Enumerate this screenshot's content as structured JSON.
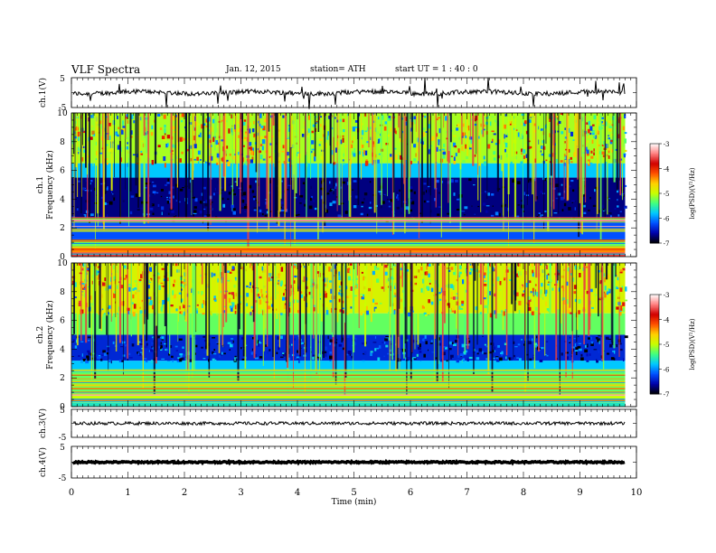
{
  "header": {
    "title": "VLF  Spectra",
    "date": "Jan. 12, 2015",
    "station": "station= ATH",
    "start": "start  UT  =   1 : 40 : 0"
  },
  "chart_data": [
    {
      "type": "line",
      "panel": "ch1-waveform",
      "ylabel": "ch.1(V)",
      "ylim": [
        -5,
        5
      ],
      "ytick_labels": [
        "5",
        "-5"
      ],
      "baseline": 0,
      "series_color": "#000000"
    },
    {
      "type": "heatmap",
      "panel": "ch1-spectrogram",
      "ylabel": "ch.1\nFrequency  (kHz)",
      "ylabel_line1": "ch.1",
      "ylabel_line2": "Frequency  (kHz)",
      "ylim": [
        0,
        10
      ],
      "ytick_labels": [
        "10",
        "8",
        "6",
        "4",
        "2",
        "0"
      ],
      "x_end_min": 9.8,
      "bands_khz": [
        {
          "from": 0.0,
          "to": 0.3,
          "level": -3.6
        },
        {
          "from": 0.3,
          "to": 0.7,
          "level": -4.4
        },
        {
          "from": 0.7,
          "to": 1.2,
          "level": -5.3
        },
        {
          "from": 1.2,
          "to": 2.6,
          "level": -6.2
        },
        {
          "from": 2.6,
          "to": 5.5,
          "level": -6.7
        },
        {
          "from": 5.5,
          "to": 6.5,
          "level": -5.8
        },
        {
          "from": 6.5,
          "to": 10.0,
          "level": -5.1
        }
      ]
    },
    {
      "type": "heatmap",
      "panel": "ch2-spectrogram",
      "ylabel_line1": "ch.2",
      "ylabel_line2": "Frequency  (kHz)",
      "ylim": [
        0,
        10
      ],
      "ytick_labels": [
        "10",
        "8",
        "6",
        "4",
        "2",
        "0"
      ],
      "x_end_min": 9.8,
      "bands_khz": [
        {
          "from": 0.0,
          "to": 0.3,
          "level": -5.6
        },
        {
          "from": 0.3,
          "to": 1.0,
          "level": -5.0
        },
        {
          "from": 1.0,
          "to": 2.5,
          "level": -5.3
        },
        {
          "from": 2.5,
          "to": 3.2,
          "level": -5.8
        },
        {
          "from": 3.2,
          "to": 5.0,
          "level": -6.4
        },
        {
          "from": 5.0,
          "to": 6.5,
          "level": -5.3
        },
        {
          "from": 6.5,
          "to": 10.0,
          "level": -4.9
        }
      ]
    },
    {
      "type": "line",
      "panel": "ch3-waveform",
      "ylabel": "ch.3(V)",
      "ylim": [
        -5,
        5
      ],
      "ytick_labels": [
        "5",
        "-5"
      ],
      "baseline": 0
    },
    {
      "type": "line",
      "panel": "ch4-waveform",
      "ylabel": "ch.4(V)",
      "ylim": [
        -5,
        5
      ],
      "ytick_labels": [
        "5",
        "-5"
      ],
      "baseline": 0
    }
  ],
  "x_axis": {
    "label": "Time  (min)",
    "xlim": [
      0,
      10
    ],
    "tick_labels": [
      "0",
      "1",
      "2",
      "3",
      "4",
      "5",
      "6",
      "7",
      "8",
      "9",
      "10"
    ]
  },
  "colorbar": {
    "label": "log(PSD)(V²/Hz)",
    "range": [
      -7,
      -3
    ],
    "tick_labels": [
      "-3",
      "-4",
      "-5",
      "-6",
      "-7"
    ],
    "colormap": [
      "#000000",
      "#0000aa",
      "#0050ff",
      "#00c8ff",
      "#40ff80",
      "#c8ff00",
      "#ffd000",
      "#ff5000",
      "#d00000",
      "#ff8080",
      "#ffffff"
    ]
  }
}
